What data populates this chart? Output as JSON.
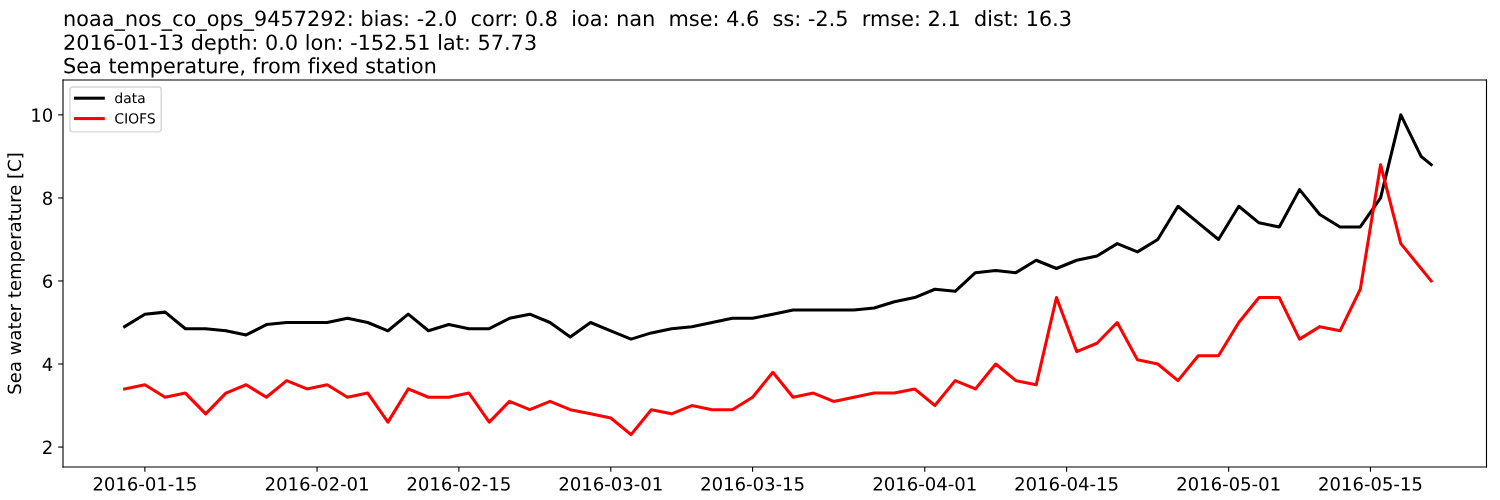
{
  "chart_data": {
    "type": "line",
    "title": "noaa_nos_co_ops_9457292: bias: -2.0  corr: 0.8  ioa: nan  mse: 4.6  ss: -2.5  rmse: 2.1  dist: 16.3\n2016-01-13 depth: 0.0 lon: -152.51 lat: 57.73\nSea temperature, from fixed station",
    "ylabel": "Sea water temperature [C]",
    "x": [
      "2016-01-13",
      "2016-01-15",
      "2016-01-17",
      "2016-01-19",
      "2016-01-21",
      "2016-01-23",
      "2016-01-25",
      "2016-01-27",
      "2016-01-29",
      "2016-01-31",
      "2016-02-02",
      "2016-02-04",
      "2016-02-06",
      "2016-02-08",
      "2016-02-10",
      "2016-02-12",
      "2016-02-14",
      "2016-02-16",
      "2016-02-18",
      "2016-02-20",
      "2016-02-22",
      "2016-02-24",
      "2016-02-26",
      "2016-02-28",
      "2016-03-01",
      "2016-03-03",
      "2016-03-05",
      "2016-03-07",
      "2016-03-09",
      "2016-03-11",
      "2016-03-13",
      "2016-03-15",
      "2016-03-17",
      "2016-03-19",
      "2016-03-21",
      "2016-03-23",
      "2016-03-25",
      "2016-03-27",
      "2016-03-29",
      "2016-03-31",
      "2016-04-02",
      "2016-04-04",
      "2016-04-06",
      "2016-04-08",
      "2016-04-10",
      "2016-04-12",
      "2016-04-14",
      "2016-04-16",
      "2016-04-18",
      "2016-04-20",
      "2016-04-22",
      "2016-04-24",
      "2016-04-26",
      "2016-04-28",
      "2016-04-30",
      "2016-05-02",
      "2016-05-04",
      "2016-05-06",
      "2016-05-08",
      "2016-05-10",
      "2016-05-12",
      "2016-05-14",
      "2016-05-16",
      "2016-05-18",
      "2016-05-20",
      "2016-05-21"
    ],
    "series": [
      {
        "name": "data",
        "color": "#000000",
        "values": [
          4.9,
          5.2,
          5.25,
          4.85,
          4.85,
          4.8,
          4.7,
          4.95,
          5.0,
          5.0,
          5.0,
          5.1,
          5.0,
          4.8,
          5.2,
          4.8,
          4.95,
          4.85,
          4.85,
          5.1,
          5.2,
          5.0,
          4.65,
          5.0,
          4.8,
          4.6,
          4.75,
          4.85,
          4.9,
          5.0,
          5.1,
          5.1,
          5.2,
          5.3,
          5.3,
          5.3,
          5.3,
          5.35,
          5.5,
          5.6,
          5.8,
          5.75,
          6.2,
          6.25,
          6.2,
          6.5,
          6.3,
          6.5,
          6.6,
          6.9,
          6.7,
          7.0,
          7.8,
          7.4,
          7.0,
          7.8,
          7.4,
          7.3,
          8.2,
          7.6,
          7.3,
          7.3,
          8.0,
          10.0,
          9.0,
          8.8
        ]
      },
      {
        "name": "CIOFS",
        "color": "#ff0000",
        "values": [
          3.4,
          3.5,
          3.2,
          3.3,
          2.8,
          3.3,
          3.5,
          3.2,
          3.6,
          3.4,
          3.5,
          3.2,
          3.3,
          2.6,
          3.4,
          3.2,
          3.2,
          3.3,
          2.6,
          3.1,
          2.9,
          3.1,
          2.9,
          2.8,
          2.7,
          2.3,
          2.9,
          2.8,
          3.0,
          2.9,
          2.9,
          3.2,
          3.8,
          3.2,
          3.3,
          3.1,
          3.2,
          3.3,
          3.3,
          3.4,
          3.0,
          3.6,
          3.4,
          4.0,
          3.6,
          3.5,
          5.6,
          4.3,
          4.5,
          5.0,
          4.1,
          4.0,
          3.6,
          4.2,
          4.2,
          5.0,
          5.6,
          5.6,
          4.6,
          4.9,
          4.8,
          5.8,
          8.8,
          6.9,
          6.3,
          6.0
        ]
      }
    ],
    "xlim": [
      "2016-01-06T22:00",
      "2016-05-26T11:00"
    ],
    "xticks": [
      "2016-01-15",
      "2016-02-01",
      "2016-02-15",
      "2016-03-01",
      "2016-03-15",
      "2016-04-01",
      "2016-04-15",
      "2016-05-01",
      "2016-05-15"
    ],
    "ylim": [
      1.52,
      10.84
    ],
    "yticks": [
      2,
      4,
      6,
      8,
      10
    ],
    "legend": "top left"
  }
}
